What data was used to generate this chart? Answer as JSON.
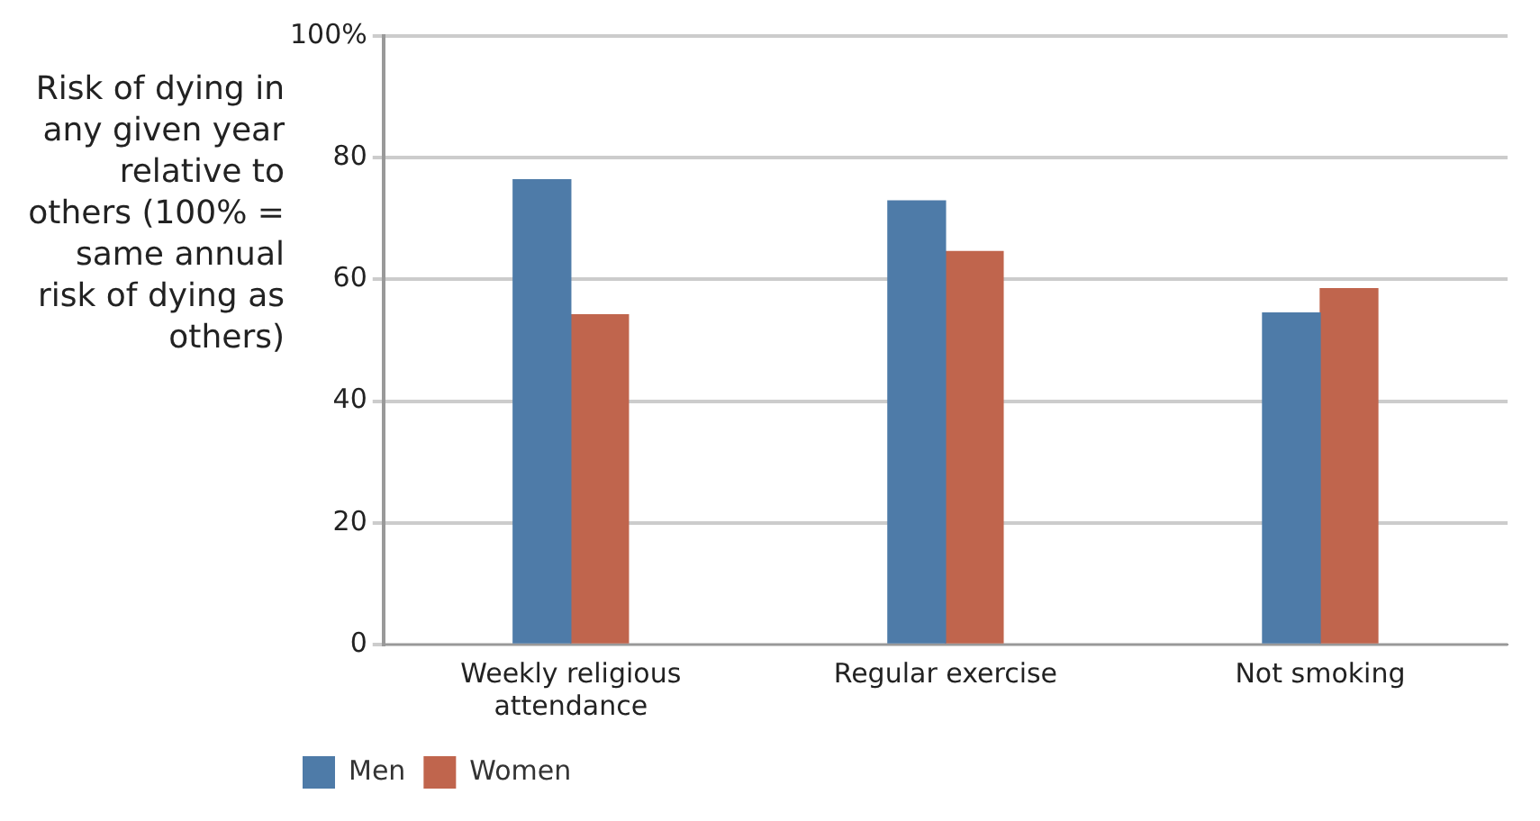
{
  "chart_data": {
    "type": "bar",
    "ylabel": "Risk of dying in any given year relative to others (100% = same annual risk of dying as others)",
    "categories": [
      "Weekly religious attendance",
      "Regular exercise",
      "Not smoking"
    ],
    "series": [
      {
        "name": "Men",
        "color": "#4e7ba8",
        "values": [
          76.4,
          72.9,
          54.5
        ]
      },
      {
        "name": "Women",
        "color": "#c0654d",
        "values": [
          54.2,
          64.6,
          58.5
        ]
      }
    ],
    "ylim": [
      0,
      100
    ],
    "yticks": [
      0,
      20,
      40,
      60,
      80,
      {
        "value": 100,
        "label": "100%"
      }
    ],
    "grid": "y",
    "legend": "bottom left"
  }
}
